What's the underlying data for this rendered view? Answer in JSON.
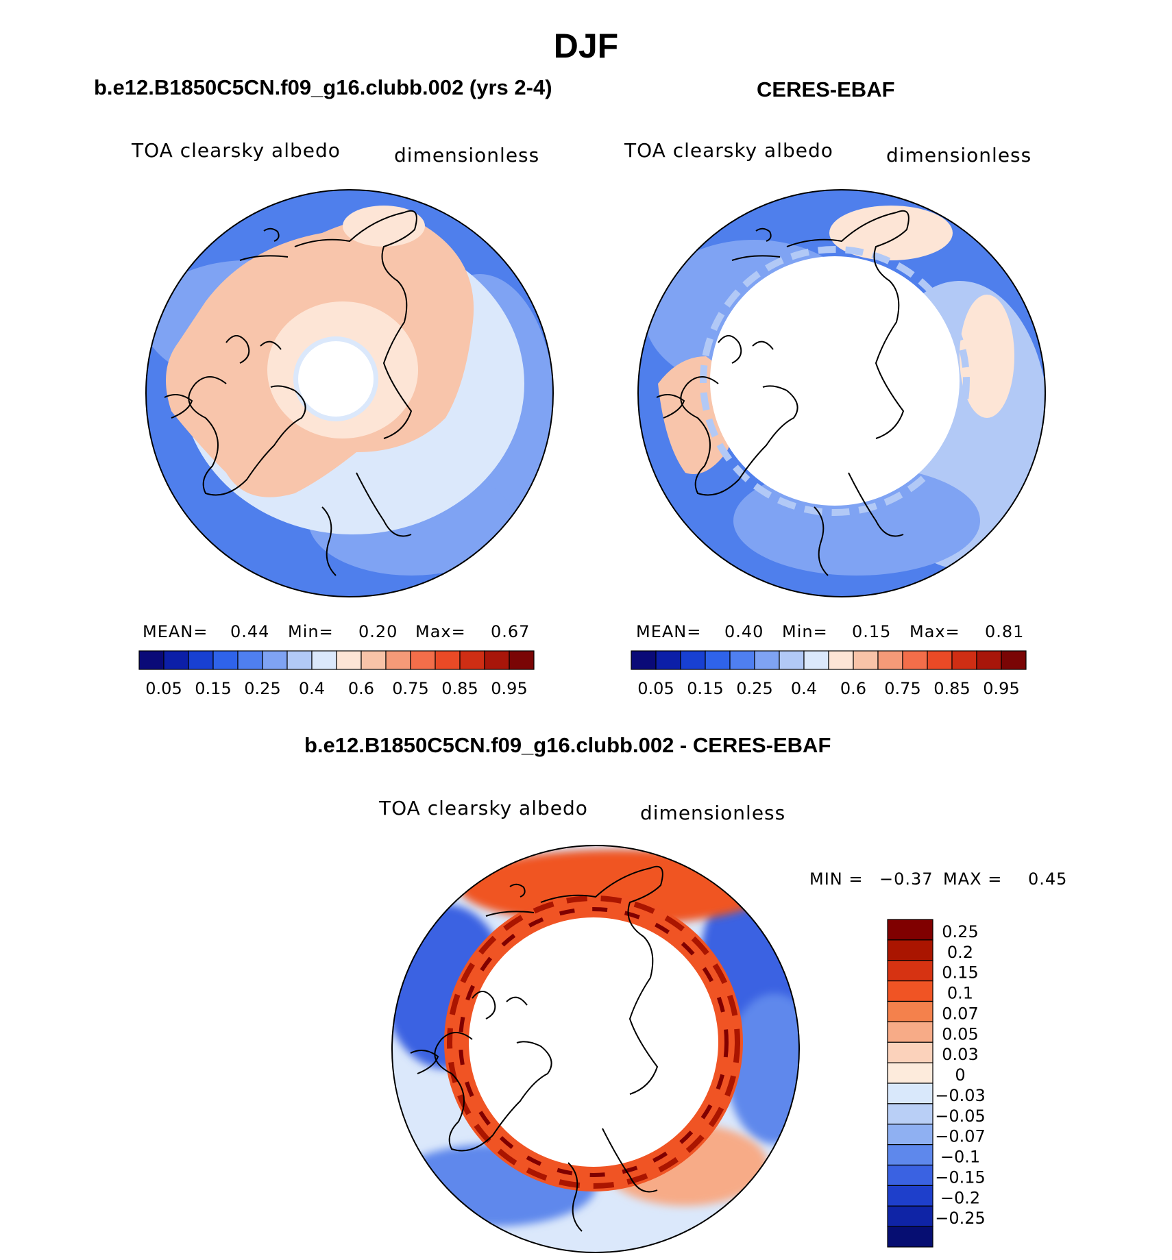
{
  "figure": {
    "title": "DJF",
    "panels": [
      {
        "title": "b.e12.B1850C5CN.f09_g16.clubb.002 (yrs 2-4)",
        "left_label": "TOA clearsky albedo",
        "right_label": "dimensionless",
        "stats": {
          "mean_label": "MEAN=",
          "mean": "0.44",
          "min_label": "Min=",
          "min": "0.20",
          "max_label": "Max=",
          "max": "0.67"
        }
      },
      {
        "title": "CERES-EBAF",
        "left_label": "TOA clearsky albedo",
        "right_label": "dimensionless",
        "stats": {
          "mean_label": "MEAN=",
          "mean": "0.40",
          "min_label": "Min=",
          "min": "0.15",
          "max_label": "Max=",
          "max": "0.81"
        }
      },
      {
        "title": "b.e12.B1850C5CN.f09_g16.clubb.002 - CERES-EBAF",
        "left_label": "TOA clearsky albedo",
        "right_label": "dimensionless",
        "stats": {
          "min_label": "MIN =",
          "min": "−0.37",
          "max_label": "MAX =",
          "max": "0.45"
        }
      }
    ]
  },
  "chart_data": [
    {
      "type": "heatmap",
      "projection": "north polar stereographic",
      "title": "b.e12.B1850C5CN.f09_g16.clubb.002 (yrs 2-4)",
      "variable": "TOA clearsky albedo",
      "units": "dimensionless",
      "mean": 0.44,
      "min": 0.2,
      "max": 0.67,
      "colorbar_ticks": [
        "0.05",
        "0.15",
        "0.25",
        "0.4",
        "0.6",
        "0.75",
        "0.85",
        "0.95"
      ],
      "colorbar_levels": [
        0.05,
        0.1,
        0.15,
        0.2,
        0.25,
        0.3,
        0.4,
        0.5,
        0.6,
        0.7,
        0.75,
        0.8,
        0.85,
        0.9,
        0.95
      ]
    },
    {
      "type": "heatmap",
      "projection": "north polar stereographic",
      "title": "CERES-EBAF",
      "variable": "TOA clearsky albedo",
      "units": "dimensionless",
      "mean": 0.4,
      "min": 0.15,
      "max": 0.81,
      "colorbar_ticks": [
        "0.05",
        "0.15",
        "0.25",
        "0.4",
        "0.6",
        "0.75",
        "0.85",
        "0.95"
      ],
      "colorbar_levels": [
        0.05,
        0.1,
        0.15,
        0.2,
        0.25,
        0.3,
        0.4,
        0.5,
        0.6,
        0.7,
        0.75,
        0.8,
        0.85,
        0.9,
        0.95
      ]
    },
    {
      "type": "heatmap",
      "projection": "north polar stereographic",
      "title": "b.e12.B1850C5CN.f09_g16.clubb.002 - CERES-EBAF",
      "variable": "TOA clearsky albedo",
      "units": "dimensionless",
      "min": -0.37,
      "max": 0.45,
      "colorbar_ticks": [
        "0.25",
        "0.2",
        "0.15",
        "0.1",
        "0.07",
        "0.05",
        "0.03",
        "0",
        "−0.03",
        "−0.05",
        "−0.07",
        "−0.1",
        "−0.15",
        "−0.2",
        "−0.25"
      ]
    }
  ],
  "colors": {
    "seq_palette": [
      "#0a0a78",
      "#0c1fa8",
      "#1840d2",
      "#2f63ea",
      "#4f7ff0",
      "#7fa3f3",
      "#b2c9f6",
      "#dbe8fb",
      "#fde5d6",
      "#f8c3a8",
      "#f59a78",
      "#f36e4a",
      "#ea4a26",
      "#cf2e14",
      "#a8160a",
      "#7a0505"
    ],
    "diff_palette": [
      "#800000",
      "#aa1500",
      "#d63312",
      "#f05424",
      "#f4814c",
      "#f7ab87",
      "#fbd2bb",
      "#fdebdc",
      "#d9e8fb",
      "#b9cff6",
      "#8fb0f2",
      "#5e88ec",
      "#3a62e2",
      "#1e3fcb",
      "#0f24a6",
      "#060e72"
    ],
    "ocean": "#4f7fec",
    "land": "#f8c5ab",
    "pale_blue": "#dbe8fb"
  }
}
